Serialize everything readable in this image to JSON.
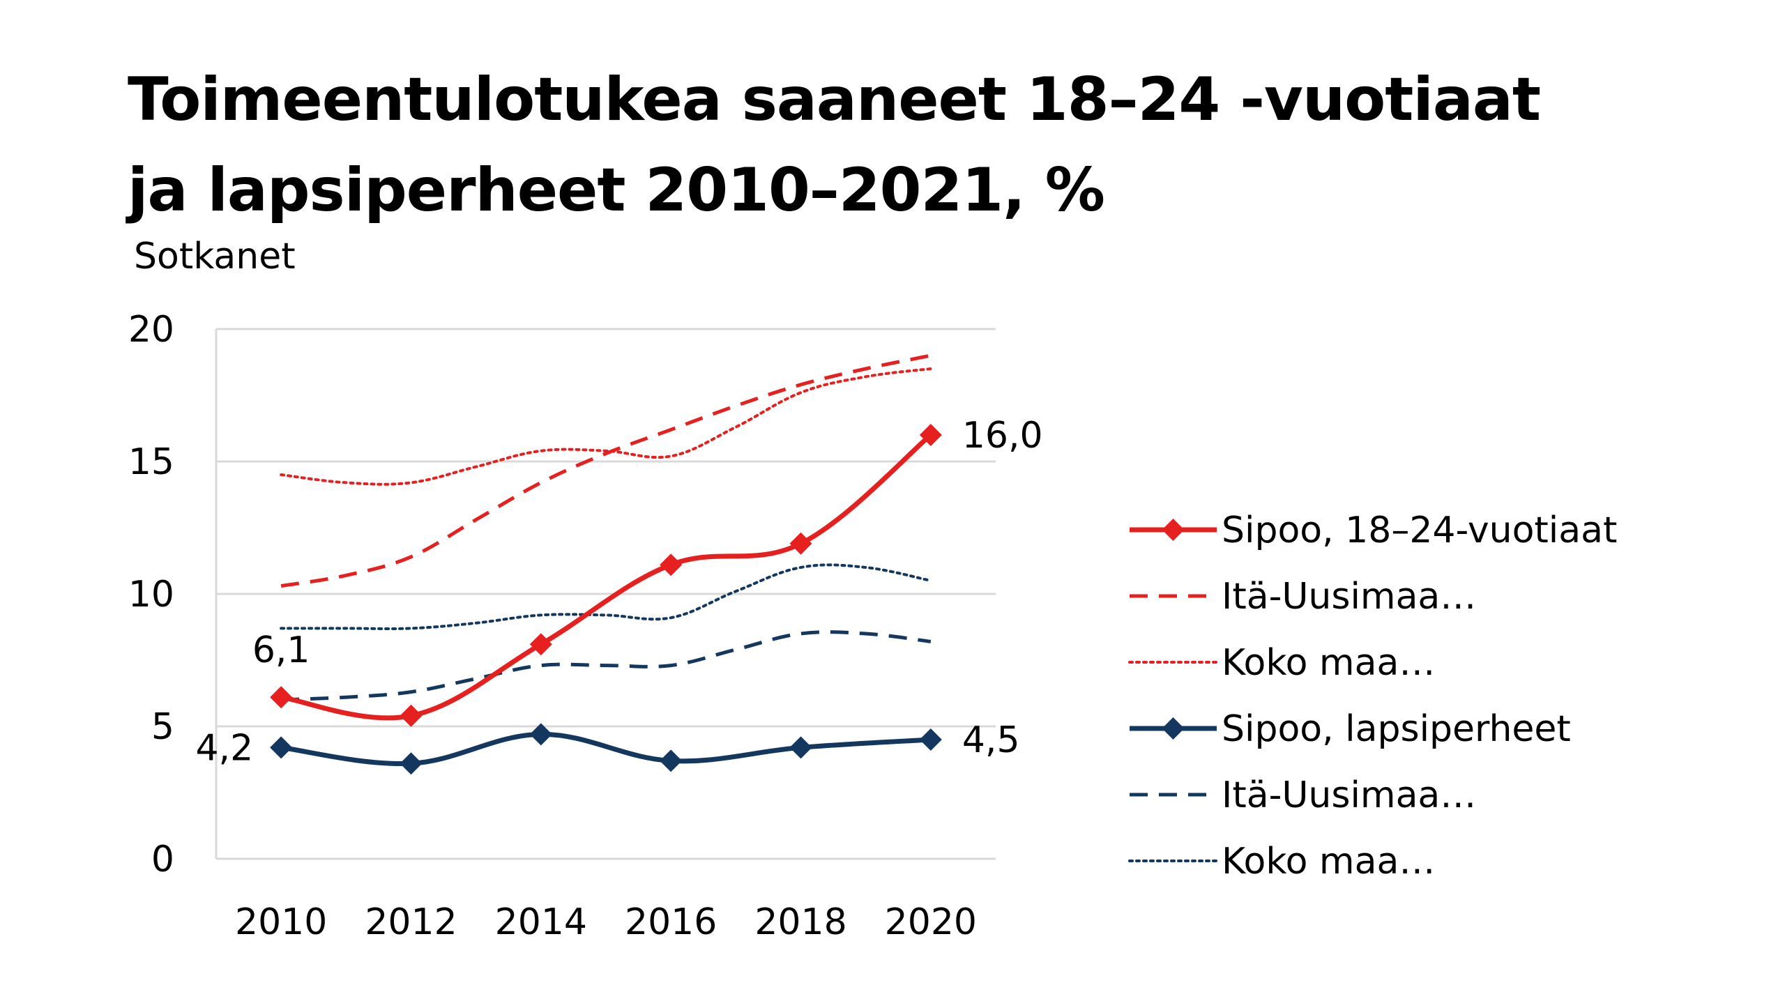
{
  "title_lines": [
    "Toimeentulotukea saaneet 18–24 -vuotiaat",
    "ja lapsiperheet 2010–2021, %"
  ],
  "subtitle": "Sotkanet",
  "chart_data": {
    "type": "line",
    "title": "Toimeentulotukea saaneet 18–24 -vuotiaat ja lapsiperheet 2010–2021, %",
    "subtitle": "Sotkanet",
    "xlabel": "",
    "ylabel": "",
    "x": [
      2010,
      2011,
      2012,
      2013,
      2014,
      2015,
      2016,
      2017,
      2018,
      2019,
      2020
    ],
    "x_tick_labels": [
      "2010",
      "2012",
      "2014",
      "2016",
      "2018",
      "2020"
    ],
    "y_ticks": [
      0,
      5,
      10,
      15,
      20
    ],
    "ylim": [
      0,
      20
    ],
    "grid": "horizontal",
    "legend_position": "right",
    "series": [
      {
        "name": "Sipoo, 18–24-vuotiaat",
        "color": "#e5201f",
        "style": "solid",
        "marker": "diamond",
        "values": [
          6.1,
          null,
          5.4,
          null,
          8.1,
          null,
          11.1,
          null,
          11.9,
          null,
          16.0
        ]
      },
      {
        "name": "Itä-Uusimaa…",
        "color": "#e5201f",
        "style": "dashed",
        "marker": "none",
        "values": [
          10.3,
          10.7,
          11.4,
          12.8,
          14.2,
          15.3,
          16.2,
          17.1,
          17.9,
          18.5,
          19.0
        ]
      },
      {
        "name": "Koko maa…",
        "color": "#e5201f",
        "style": "dotted",
        "marker": "none",
        "values": [
          14.5,
          14.2,
          14.2,
          14.8,
          15.4,
          15.4,
          15.2,
          16.3,
          17.6,
          18.2,
          18.5
        ]
      },
      {
        "name": "Sipoo, lapsiperheet",
        "color": "#13375e",
        "style": "solid",
        "marker": "diamond",
        "values": [
          4.2,
          null,
          3.6,
          null,
          4.7,
          null,
          3.7,
          null,
          4.2,
          null,
          4.5
        ]
      },
      {
        "name": "Itä-Uusimaa…",
        "color": "#13375e",
        "style": "dashed",
        "marker": "none",
        "values": [
          6.0,
          6.1,
          6.3,
          6.8,
          7.3,
          7.3,
          7.3,
          7.9,
          8.5,
          8.5,
          8.2
        ]
      },
      {
        "name": "Koko maa…",
        "color": "#13375e",
        "style": "dotted",
        "marker": "none",
        "values": [
          8.7,
          8.7,
          8.7,
          8.9,
          9.2,
          9.2,
          9.1,
          10.1,
          11.0,
          11.0,
          10.5
        ]
      }
    ],
    "data_labels": [
      {
        "text": "6,1"
      },
      {
        "text": "16,0"
      },
      {
        "text": "4,2"
      },
      {
        "text": "4,5"
      }
    ]
  }
}
